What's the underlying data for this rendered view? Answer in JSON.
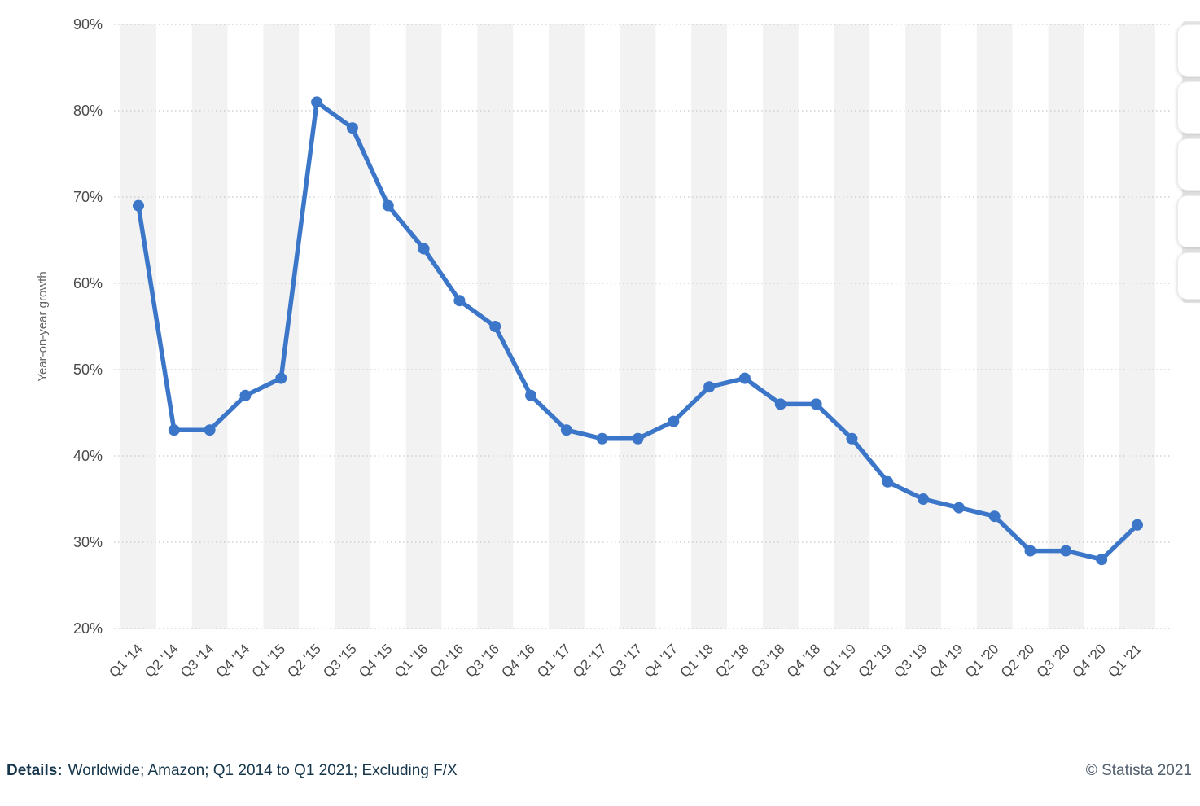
{
  "chart_data": {
    "type": "line",
    "title": "",
    "categories": [
      "Q1 '14",
      "Q2 '14",
      "Q3 '14",
      "Q4 '14",
      "Q1 '15",
      "Q2 '15",
      "Q3 '15",
      "Q4 '15",
      "Q1 '16",
      "Q2 '16",
      "Q3 '16",
      "Q4 '16",
      "Q1 '17",
      "Q2 '17",
      "Q3 '17",
      "Q4 '17",
      "Q1 '18",
      "Q2 '18",
      "Q3 '18",
      "Q4 '18",
      "Q1 '19",
      "Q2 '19",
      "Q3 '19",
      "Q4 '19",
      "Q1 '20",
      "Q2 '20",
      "Q3 '20",
      "Q4 '20",
      "Q1 '21"
    ],
    "values": [
      69,
      43,
      43,
      47,
      49,
      81,
      78,
      69,
      64,
      58,
      55,
      47,
      43,
      42,
      42,
      44,
      48,
      49,
      46,
      46,
      42,
      37,
      35,
      34,
      33,
      29,
      29,
      28,
      32
    ],
    "series_name": "Year-on-year growth",
    "xlabel": "",
    "ylabel": "Year-on-year growth",
    "ylim": [
      20,
      90
    ],
    "yticks": [
      20,
      30,
      40,
      50,
      60,
      70,
      80,
      90
    ],
    "ytick_suffix": "%",
    "grid": "horizontal-dotted",
    "legend": "none",
    "line_color": "#3b76c9",
    "stripe_color": "#f2f2f2",
    "gridline_color": "#c8c8c8",
    "axis_text_color": "#4a4a4a"
  },
  "footer": {
    "details_label": "Details:",
    "details_text": "Worldwide; Amazon; Q1 2014 to Q1 2021; Excluding F/X",
    "copyright": "© Statista 2021"
  },
  "toolbar": {
    "button_count": 5
  }
}
